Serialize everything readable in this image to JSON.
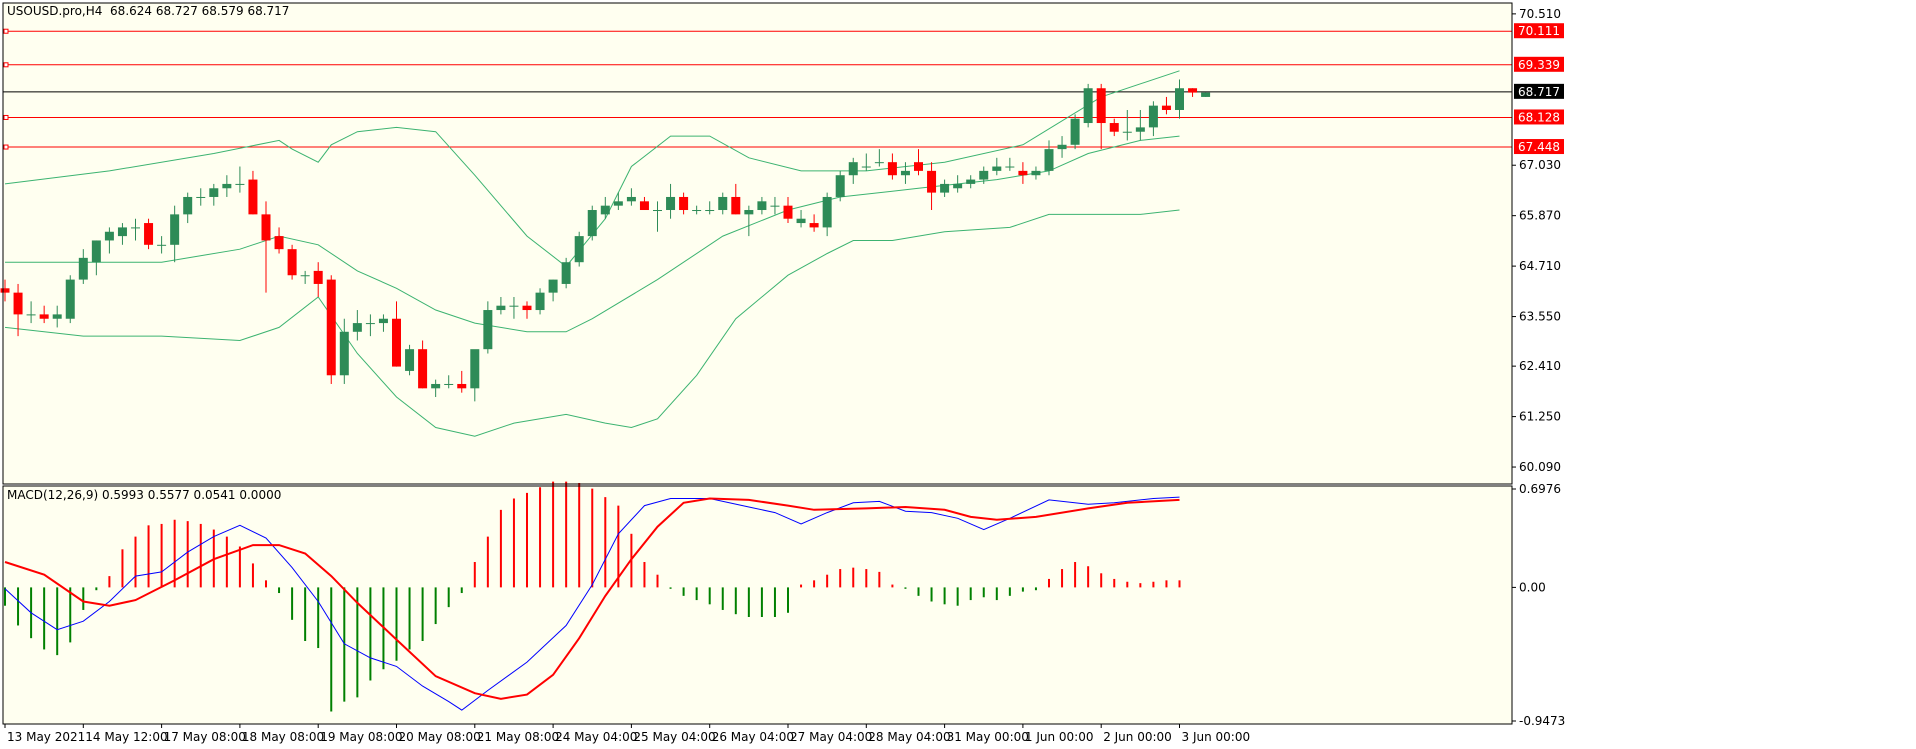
{
  "header": {
    "symbol_label": "USOUSD.pro,H4",
    "ohlc_label": "68.624 68.727 68.579 68.717"
  },
  "macd_header": {
    "label": "MACD(12,26,9) 0.5993 0.5577 0.0541 0.0000"
  },
  "colors": {
    "background": "#fffff0",
    "bull": "#2e8b57",
    "bear": "#ff0000",
    "band": "#3cb371",
    "level": "#ff0000",
    "price_line": "#000000",
    "macd_main": "#0000ff",
    "macd_signal": "#ff0000",
    "hist_pos": "#ff0000",
    "hist_neg": "#008000"
  },
  "chart_data": [
    {
      "type": "candlestick",
      "title": "USOUSD.pro,H4",
      "ylim": [
        59.7,
        70.76
      ],
      "price_axis_ticks": [
        70.51,
        67.03,
        65.87,
        64.71,
        63.55,
        62.41,
        61.25,
        60.09
      ],
      "price_axis_labels": [
        "70.510",
        "67.030",
        "65.870",
        "64.710",
        "63.550",
        "62.410",
        "61.250",
        "60.090"
      ],
      "current_price": {
        "value": 68.717,
        "label": "68.717"
      },
      "levels": [
        {
          "value": 70.111,
          "label": "70.111"
        },
        {
          "value": 69.339,
          "label": "69.339"
        },
        {
          "value": 68.128,
          "label": "68.128"
        },
        {
          "value": 67.448,
          "label": "67.448"
        }
      ],
      "x_labels": [
        "13 May 2021",
        "14 May 12:00",
        "17 May 08:00",
        "18 May 08:00",
        "19 May 08:00",
        "20 May 08:00",
        "21 May 08:00",
        "24 May 04:00",
        "25 May 04:00",
        "26 May 04:00",
        "27 May 04:00",
        "28 May 04:00",
        "31 May 00:00",
        "1 Jun 00:00",
        "2 Jun 00:00",
        "3 Jun 00:00"
      ],
      "x_label_bar_index": [
        0,
        6,
        12,
        18,
        24,
        30,
        36,
        42,
        48,
        54,
        60,
        66,
        72,
        78,
        84,
        90
      ],
      "candles": [
        [
          64.2,
          64.4,
          63.9,
          64.1
        ],
        [
          64.1,
          64.3,
          63.1,
          63.6
        ],
        [
          63.6,
          63.9,
          63.4,
          63.6
        ],
        [
          63.6,
          63.8,
          63.4,
          63.5
        ],
        [
          63.5,
          63.8,
          63.3,
          63.6
        ],
        [
          63.5,
          64.5,
          63.4,
          64.4
        ],
        [
          64.4,
          65.1,
          64.3,
          64.9
        ],
        [
          64.8,
          65.3,
          64.5,
          65.3
        ],
        [
          65.3,
          65.6,
          65.0,
          65.5
        ],
        [
          65.4,
          65.7,
          65.2,
          65.6
        ],
        [
          65.6,
          65.8,
          65.3,
          65.6
        ],
        [
          65.7,
          65.8,
          65.1,
          65.2
        ],
        [
          65.2,
          65.4,
          65.0,
          65.2
        ],
        [
          65.2,
          66.1,
          64.8,
          65.9
        ],
        [
          65.9,
          66.4,
          65.7,
          66.3
        ],
        [
          66.3,
          66.5,
          66.1,
          66.3
        ],
        [
          66.3,
          66.6,
          66.1,
          66.5
        ],
        [
          66.5,
          66.8,
          66.3,
          66.6
        ],
        [
          66.6,
          67.0,
          66.4,
          66.6
        ],
        [
          66.7,
          66.9,
          65.9,
          65.9
        ],
        [
          65.9,
          66.2,
          64.1,
          65.3
        ],
        [
          65.4,
          65.6,
          65.0,
          65.1
        ],
        [
          65.1,
          65.2,
          64.4,
          64.5
        ],
        [
          64.5,
          64.6,
          64.3,
          64.5
        ],
        [
          64.6,
          64.8,
          64.0,
          64.3
        ],
        [
          64.4,
          64.5,
          62.0,
          62.2
        ],
        [
          62.2,
          63.5,
          62.0,
          63.2
        ],
        [
          63.2,
          63.7,
          63.0,
          63.4
        ],
        [
          63.4,
          63.6,
          63.1,
          63.4
        ],
        [
          63.4,
          63.6,
          63.2,
          63.5
        ],
        [
          63.5,
          63.9,
          62.4,
          62.4
        ],
        [
          62.3,
          62.9,
          62.2,
          62.8
        ],
        [
          62.8,
          63.0,
          61.9,
          61.9
        ],
        [
          61.9,
          62.1,
          61.7,
          62.0
        ],
        [
          62.0,
          62.2,
          61.9,
          62.0
        ],
        [
          62.0,
          62.3,
          61.8,
          61.9
        ],
        [
          61.9,
          62.7,
          61.6,
          62.8
        ],
        [
          62.8,
          63.9,
          62.7,
          63.7
        ],
        [
          63.7,
          64.0,
          63.6,
          63.8
        ],
        [
          63.8,
          64.0,
          63.5,
          63.8
        ],
        [
          63.8,
          63.9,
          63.5,
          63.7
        ],
        [
          63.7,
          64.2,
          63.6,
          64.1
        ],
        [
          64.1,
          64.4,
          63.9,
          64.4
        ],
        [
          64.3,
          64.9,
          64.2,
          64.8
        ],
        [
          64.8,
          65.5,
          64.7,
          65.4
        ],
        [
          65.4,
          66.1,
          65.3,
          66.0
        ],
        [
          65.9,
          66.3,
          65.8,
          66.1
        ],
        [
          66.1,
          66.4,
          66.0,
          66.2
        ],
        [
          66.2,
          66.5,
          66.1,
          66.3
        ],
        [
          66.2,
          66.3,
          66.0,
          66.0
        ],
        [
          66.0,
          66.2,
          65.5,
          66.0
        ],
        [
          66.0,
          66.6,
          65.8,
          66.3
        ],
        [
          66.3,
          66.4,
          65.9,
          66.0
        ],
        [
          66.0,
          66.1,
          65.9,
          66.0
        ],
        [
          66.0,
          66.2,
          65.9,
          66.0
        ],
        [
          66.0,
          66.4,
          65.9,
          66.3
        ],
        [
          66.3,
          66.6,
          65.9,
          65.9
        ],
        [
          65.9,
          66.1,
          65.4,
          66.0
        ],
        [
          66.0,
          66.3,
          65.9,
          66.2
        ],
        [
          66.1,
          66.3,
          65.9,
          66.1
        ],
        [
          66.1,
          66.3,
          65.7,
          65.8
        ],
        [
          65.7,
          66.0,
          65.6,
          65.8
        ],
        [
          65.7,
          65.9,
          65.5,
          65.6
        ],
        [
          65.6,
          66.4,
          65.4,
          66.3
        ],
        [
          66.3,
          66.9,
          66.2,
          66.8
        ],
        [
          66.8,
          67.2,
          66.6,
          67.1
        ],
        [
          67.0,
          67.3,
          66.9,
          67.0
        ],
        [
          67.1,
          67.4,
          67.0,
          67.1
        ],
        [
          67.1,
          67.3,
          66.7,
          66.8
        ],
        [
          66.8,
          67.1,
          66.6,
          66.9
        ],
        [
          67.1,
          67.4,
          66.8,
          66.9
        ],
        [
          66.9,
          67.1,
          66.0,
          66.4
        ],
        [
          66.4,
          66.7,
          66.3,
          66.6
        ],
        [
          66.5,
          66.8,
          66.4,
          66.6
        ],
        [
          66.6,
          66.8,
          66.5,
          66.7
        ],
        [
          66.7,
          67.0,
          66.6,
          66.9
        ],
        [
          66.9,
          67.2,
          66.8,
          67.0
        ],
        [
          67.0,
          67.2,
          66.9,
          67.0
        ],
        [
          66.9,
          67.1,
          66.6,
          66.8
        ],
        [
          66.8,
          67.0,
          66.7,
          66.9
        ],
        [
          66.9,
          67.6,
          66.8,
          67.4
        ],
        [
          67.4,
          67.7,
          67.2,
          67.5
        ],
        [
          67.5,
          68.2,
          67.4,
          68.1
        ],
        [
          68.0,
          68.9,
          67.9,
          68.8
        ],
        [
          68.8,
          68.9,
          67.4,
          68.0
        ],
        [
          68.0,
          68.1,
          67.7,
          67.8
        ],
        [
          67.8,
          68.3,
          67.6,
          67.8
        ],
        [
          67.8,
          68.3,
          67.6,
          67.9
        ],
        [
          67.9,
          68.5,
          67.7,
          68.4
        ],
        [
          68.4,
          68.6,
          68.2,
          68.3
        ],
        [
          68.3,
          69.0,
          68.1,
          68.8
        ],
        [
          68.8,
          68.8,
          68.6,
          68.7
        ],
        [
          68.6,
          68.7,
          68.6,
          68.7
        ]
      ],
      "bollinger_upper": [
        [
          0,
          66.6
        ],
        [
          8,
          66.9
        ],
        [
          16,
          67.3
        ],
        [
          21,
          67.6
        ],
        [
          22,
          67.4
        ],
        [
          24,
          67.1
        ],
        [
          25,
          67.5
        ],
        [
          27,
          67.8
        ],
        [
          30,
          67.9
        ],
        [
          33,
          67.8
        ],
        [
          36,
          66.8
        ],
        [
          40,
          65.4
        ],
        [
          43,
          64.7
        ],
        [
          46,
          65.8
        ],
        [
          48,
          67.0
        ],
        [
          51,
          67.7
        ],
        [
          54,
          67.7
        ],
        [
          57,
          67.2
        ],
        [
          61,
          66.9
        ],
        [
          66,
          66.9
        ],
        [
          72,
          67.1
        ],
        [
          78,
          67.5
        ],
        [
          84,
          68.6
        ],
        [
          90,
          69.2
        ]
      ],
      "bollinger_middle": [
        [
          0,
          64.8
        ],
        [
          6,
          64.8
        ],
        [
          12,
          64.8
        ],
        [
          18,
          65.1
        ],
        [
          21,
          65.4
        ],
        [
          24,
          65.2
        ],
        [
          27,
          64.6
        ],
        [
          30,
          64.2
        ],
        [
          33,
          63.7
        ],
        [
          36,
          63.4
        ],
        [
          40,
          63.2
        ],
        [
          43,
          63.2
        ],
        [
          45,
          63.5
        ],
        [
          50,
          64.4
        ],
        [
          55,
          65.4
        ],
        [
          60,
          66.0
        ],
        [
          64,
          66.3
        ],
        [
          70,
          66.5
        ],
        [
          76,
          66.7
        ],
        [
          80,
          66.9
        ],
        [
          83,
          67.3
        ],
        [
          87,
          67.6
        ],
        [
          90,
          67.7
        ]
      ],
      "bollinger_lower": [
        [
          0,
          63.3
        ],
        [
          6,
          63.1
        ],
        [
          12,
          63.1
        ],
        [
          18,
          63.0
        ],
        [
          21,
          63.3
        ],
        [
          24,
          64.0
        ],
        [
          27,
          62.7
        ],
        [
          30,
          61.7
        ],
        [
          33,
          61.0
        ],
        [
          36,
          60.8
        ],
        [
          39,
          61.1
        ],
        [
          43,
          61.3
        ],
        [
          46,
          61.1
        ],
        [
          48,
          61.0
        ],
        [
          50,
          61.2
        ],
        [
          53,
          62.2
        ],
        [
          56,
          63.5
        ],
        [
          60,
          64.5
        ],
        [
          63,
          65.0
        ],
        [
          65,
          65.3
        ],
        [
          68,
          65.3
        ],
        [
          72,
          65.5
        ],
        [
          77,
          65.6
        ],
        [
          80,
          65.9
        ],
        [
          84,
          65.9
        ],
        [
          87,
          65.9
        ],
        [
          90,
          66.0
        ]
      ],
      "x_stretch_bars": 91
    },
    {
      "type": "macd",
      "title": "MACD(12,26,9) 0.5993 0.5577 0.0541 0.0000",
      "ylim": [
        -0.9473,
        0.6976
      ],
      "axis_labels": [
        {
          "value": 0.6976,
          "label": "0.6976"
        },
        {
          "value": 0.0,
          "label": "0.00"
        },
        {
          "value": -0.9473,
          "label": "-0.9473"
        }
      ],
      "histogram": [
        -0.13,
        -0.27,
        -0.36,
        -0.44,
        -0.48,
        -0.39,
        -0.16,
        -0.02,
        0.08,
        0.27,
        0.36,
        0.44,
        0.45,
        0.48,
        0.47,
        0.45,
        0.41,
        0.36,
        0.29,
        0.17,
        0.05,
        -0.04,
        -0.23,
        -0.38,
        -0.43,
        -0.88,
        -0.81,
        -0.78,
        -0.66,
        -0.58,
        -0.52,
        -0.44,
        -0.38,
        -0.26,
        -0.14,
        -0.04,
        0.18,
        0.36,
        0.55,
        0.63,
        0.67,
        0.71,
        0.75,
        0.75,
        0.74,
        0.7,
        0.64,
        0.58,
        0.38,
        0.18,
        0.09,
        -0.01,
        -0.06,
        -0.09,
        -0.12,
        -0.16,
        -0.19,
        -0.21,
        -0.21,
        -0.21,
        -0.18,
        0.02,
        0.05,
        0.09,
        0.13,
        0.14,
        0.13,
        0.11,
        0.02,
        -0.01,
        -0.06,
        -0.1,
        -0.12,
        -0.13,
        -0.09,
        -0.07,
        -0.09,
        -0.06,
        -0.03,
        -0.02,
        0.06,
        0.13,
        0.18,
        0.15,
        0.1,
        0.06,
        0.04,
        0.03,
        0.04,
        0.05,
        0.05
      ],
      "main": [
        [
          0,
          -0.01
        ],
        [
          2,
          -0.18
        ],
        [
          4,
          -0.3
        ],
        [
          6,
          -0.24
        ],
        [
          8,
          -0.1
        ],
        [
          10,
          0.08
        ],
        [
          12,
          0.11
        ],
        [
          14,
          0.25
        ],
        [
          16,
          0.36
        ],
        [
          18,
          0.44
        ],
        [
          20,
          0.35
        ],
        [
          22,
          0.14
        ],
        [
          24,
          -0.1
        ],
        [
          26,
          -0.4
        ],
        [
          28,
          -0.5
        ],
        [
          30,
          -0.56
        ],
        [
          32,
          -0.7
        ],
        [
          34,
          -0.81
        ],
        [
          35,
          -0.87
        ],
        [
          37,
          -0.73
        ],
        [
          40,
          -0.53
        ],
        [
          43,
          -0.27
        ],
        [
          45,
          0.02
        ],
        [
          47,
          0.38
        ],
        [
          49,
          0.58
        ],
        [
          51,
          0.63
        ],
        [
          54,
          0.63
        ],
        [
          57,
          0.57
        ],
        [
          59,
          0.53
        ],
        [
          61,
          0.45
        ],
        [
          63,
          0.53
        ],
        [
          65,
          0.6
        ],
        [
          67,
          0.61
        ],
        [
          69,
          0.54
        ],
        [
          71,
          0.53
        ],
        [
          73,
          0.49
        ],
        [
          75,
          0.41
        ],
        [
          77,
          0.49
        ],
        [
          80,
          0.62
        ],
        [
          83,
          0.59
        ],
        [
          85,
          0.6
        ],
        [
          88,
          0.63
        ],
        [
          90,
          0.64
        ]
      ],
      "signal": [
        [
          0,
          0.18
        ],
        [
          3,
          0.09
        ],
        [
          6,
          -0.1
        ],
        [
          8,
          -0.13
        ],
        [
          10,
          -0.09
        ],
        [
          13,
          0.05
        ],
        [
          16,
          0.2
        ],
        [
          19,
          0.3
        ],
        [
          21,
          0.3
        ],
        [
          23,
          0.24
        ],
        [
          25,
          0.08
        ],
        [
          27,
          -0.11
        ],
        [
          30,
          -0.37
        ],
        [
          33,
          -0.63
        ],
        [
          36,
          -0.75
        ],
        [
          38,
          -0.79
        ],
        [
          40,
          -0.76
        ],
        [
          42,
          -0.62
        ],
        [
          44,
          -0.36
        ],
        [
          46,
          -0.06
        ],
        [
          48,
          0.2
        ],
        [
          50,
          0.43
        ],
        [
          52,
          0.6
        ],
        [
          54,
          0.63
        ],
        [
          57,
          0.62
        ],
        [
          60,
          0.58
        ],
        [
          62,
          0.55
        ],
        [
          66,
          0.56
        ],
        [
          69,
          0.57
        ],
        [
          72,
          0.55
        ],
        [
          74,
          0.5
        ],
        [
          76,
          0.48
        ],
        [
          79,
          0.5
        ],
        [
          83,
          0.56
        ],
        [
          86,
          0.6
        ],
        [
          90,
          0.62
        ]
      ]
    }
  ]
}
